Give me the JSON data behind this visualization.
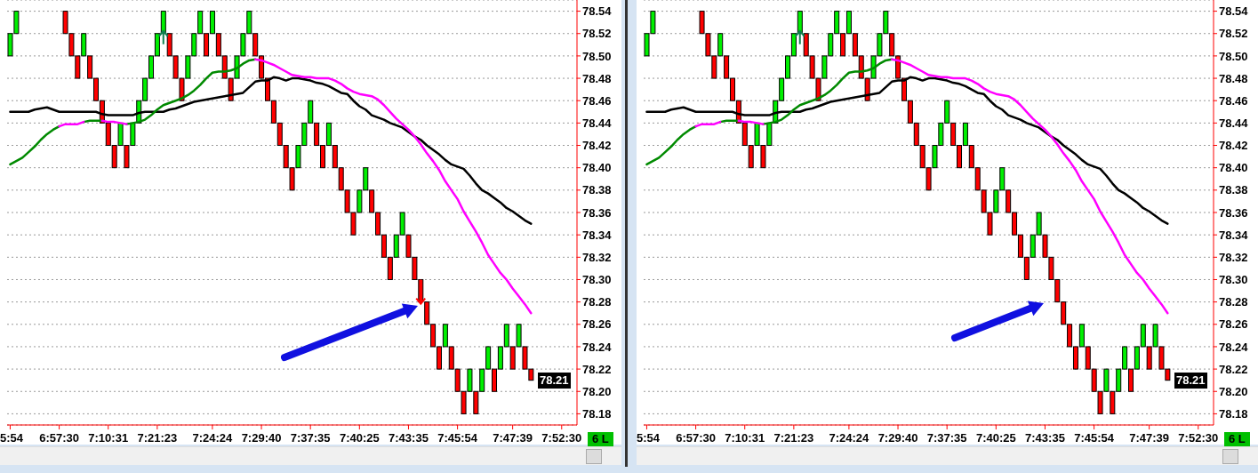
{
  "chart_data": [
    {
      "type": "candlestick",
      "grid": "y",
      "marker": "none",
      "line_style": "solid",
      "categories": [
        "5:54",
        null,
        null,
        null,
        null,
        null,
        null,
        null,
        "6:57:30",
        null,
        null,
        null,
        null,
        null,
        null,
        null,
        "7:10:31",
        null,
        null,
        null,
        null,
        null,
        null,
        null,
        "7:21:23",
        null,
        null,
        null,
        null,
        null,
        null,
        null,
        null,
        "7:24:24",
        null,
        null,
        null,
        null,
        null,
        null,
        null,
        "7:29:40",
        null,
        null,
        null,
        null,
        null,
        null,
        null,
        "7:37:35",
        null,
        null,
        null,
        null,
        null,
        null,
        null,
        "7:40:25",
        null,
        null,
        null,
        null,
        null,
        null,
        null,
        "7:43:35",
        null,
        null,
        null,
        null,
        null,
        null,
        null,
        "7:45:54",
        null,
        null,
        null,
        null,
        null,
        null,
        null,
        null,
        "7:47:39",
        null,
        null,
        null,
        null,
        null,
        null,
        null,
        "7:52:30",
        null,
        null
      ],
      "ohlc": [
        [
          78.5,
          78.52,
          78.5,
          78.52
        ],
        [
          78.52,
          78.54,
          78.52,
          78.54
        ],
        null,
        null,
        null,
        null,
        null,
        null,
        null,
        [
          78.54,
          78.54,
          78.52,
          78.52
        ],
        [
          78.52,
          78.52,
          78.5,
          78.5
        ],
        [
          78.5,
          78.5,
          78.48,
          78.48
        ],
        [
          78.5,
          78.52,
          78.5,
          78.52
        ],
        [
          78.5,
          78.5,
          78.48,
          78.48
        ],
        [
          78.48,
          78.48,
          78.46,
          78.46
        ],
        [
          78.46,
          78.46,
          78.44,
          78.44
        ],
        [
          78.44,
          78.44,
          78.42,
          78.42
        ],
        [
          78.42,
          78.42,
          78.4,
          78.4
        ],
        [
          78.42,
          78.44,
          78.42,
          78.44
        ],
        [
          78.42,
          78.42,
          78.4,
          78.4
        ],
        [
          78.42,
          78.44,
          78.42,
          78.44
        ],
        [
          78.44,
          78.46,
          78.44,
          78.46
        ],
        [
          78.46,
          78.48,
          78.46,
          78.48
        ],
        [
          78.48,
          78.5,
          78.48,
          78.5
        ],
        [
          78.5,
          78.52,
          78.5,
          78.52
        ],
        [
          78.52,
          78.54,
          78.52,
          78.54
        ],
        [
          78.52,
          78.52,
          78.5,
          78.5
        ],
        [
          78.5,
          78.5,
          78.48,
          78.48
        ],
        [
          78.48,
          78.48,
          78.46,
          78.46
        ],
        [
          78.48,
          78.5,
          78.48,
          78.5
        ],
        [
          78.5,
          78.52,
          78.5,
          78.52
        ],
        [
          78.52,
          78.54,
          78.52,
          78.54
        ],
        [
          78.52,
          78.52,
          78.5,
          78.5
        ],
        [
          78.52,
          78.54,
          78.52,
          78.54
        ],
        [
          78.52,
          78.52,
          78.5,
          78.5
        ],
        [
          78.5,
          78.5,
          78.48,
          78.48
        ],
        [
          78.48,
          78.48,
          78.46,
          78.46
        ],
        [
          78.48,
          78.5,
          78.48,
          78.5
        ],
        [
          78.5,
          78.52,
          78.5,
          78.52
        ],
        [
          78.52,
          78.54,
          78.52,
          78.54
        ],
        [
          78.52,
          78.52,
          78.5,
          78.5
        ],
        [
          78.5,
          78.5,
          78.48,
          78.48
        ],
        [
          78.48,
          78.48,
          78.46,
          78.46
        ],
        [
          78.46,
          78.46,
          78.44,
          78.44
        ],
        [
          78.44,
          78.44,
          78.42,
          78.42
        ],
        [
          78.42,
          78.42,
          78.4,
          78.4
        ],
        [
          78.4,
          78.4,
          78.38,
          78.38
        ],
        [
          78.4,
          78.42,
          78.4,
          78.42
        ],
        [
          78.42,
          78.44,
          78.42,
          78.44
        ],
        [
          78.44,
          78.46,
          78.44,
          78.46
        ],
        [
          78.44,
          78.44,
          78.42,
          78.42
        ],
        [
          78.42,
          78.42,
          78.4,
          78.4
        ],
        [
          78.42,
          78.44,
          78.42,
          78.44
        ],
        [
          78.42,
          78.42,
          78.4,
          78.4
        ],
        [
          78.4,
          78.4,
          78.38,
          78.38
        ],
        [
          78.38,
          78.38,
          78.36,
          78.36
        ],
        [
          78.36,
          78.36,
          78.34,
          78.34
        ],
        [
          78.36,
          78.38,
          78.36,
          78.38
        ],
        [
          78.38,
          78.4,
          78.38,
          78.4
        ],
        [
          78.38,
          78.38,
          78.36,
          78.36
        ],
        [
          78.36,
          78.36,
          78.34,
          78.34
        ],
        [
          78.34,
          78.34,
          78.32,
          78.32
        ],
        [
          78.32,
          78.32,
          78.3,
          78.3
        ],
        [
          78.32,
          78.34,
          78.32,
          78.34
        ],
        [
          78.34,
          78.36,
          78.34,
          78.36
        ],
        [
          78.34,
          78.34,
          78.32,
          78.32
        ],
        [
          78.32,
          78.32,
          78.3,
          78.3
        ],
        [
          78.3,
          78.3,
          78.28,
          78.28
        ],
        [
          78.28,
          78.28,
          78.26,
          78.26
        ],
        [
          78.26,
          78.26,
          78.24,
          78.24
        ],
        [
          78.24,
          78.24,
          78.22,
          78.22
        ],
        [
          78.24,
          78.26,
          78.24,
          78.26
        ],
        [
          78.24,
          78.24,
          78.22,
          78.22
        ],
        [
          78.22,
          78.22,
          78.2,
          78.2
        ],
        [
          78.2,
          78.2,
          78.18,
          78.18
        ],
        [
          78.2,
          78.22,
          78.2,
          78.22
        ],
        [
          78.2,
          78.2,
          78.18,
          78.18
        ],
        [
          78.2,
          78.22,
          78.2,
          78.22
        ],
        [
          78.22,
          78.24,
          78.22,
          78.24
        ],
        [
          78.22,
          78.22,
          78.2,
          78.2
        ],
        [
          78.22,
          78.24,
          78.22,
          78.24
        ],
        [
          78.24,
          78.26,
          78.24,
          78.26
        ],
        [
          78.24,
          78.24,
          78.22,
          78.22
        ],
        [
          78.24,
          78.26,
          78.24,
          78.26
        ],
        [
          78.24,
          78.24,
          78.22,
          78.22
        ],
        [
          78.22,
          78.22,
          78.21,
          78.21
        ],
        null,
        null,
        null,
        null,
        null,
        null,
        null
      ],
      "colors": [
        "#00f000",
        "#00f000",
        null,
        null,
        null,
        null,
        null,
        null,
        null,
        "#ff0000",
        "#ff0000",
        "#ff0000",
        "#00f000",
        "#ff0000",
        "#ff0000",
        "#ff0000",
        "#ff0000",
        "#ff0000",
        "#00f000",
        "#ff0000",
        "#00f000",
        "#00f000",
        "#00f000",
        "#00f000",
        "#00f000",
        "#00f000",
        "#ff0000",
        "#ff0000",
        "#ff0000",
        "#00f000",
        "#00f000",
        "#00f000",
        "#ff0000",
        "#00f000",
        "#ff0000",
        "#ff0000",
        "#ff0000",
        "#00f000",
        "#00f000",
        "#00f000",
        "#ff0000",
        "#ff0000",
        "#ff0000",
        "#ff0000",
        "#ff0000",
        "#ff0000",
        "#ff0000",
        "#00f000",
        "#00f000",
        "#00f000",
        "#ff0000",
        "#ff0000",
        "#00f000",
        "#ff0000",
        "#ff0000",
        "#ff0000",
        "#ff0000",
        "#00f000",
        "#00f000",
        "#ff0000",
        "#ff0000",
        "#ff0000",
        "#ff0000",
        "#00f000",
        "#00f000",
        "#ff0000",
        "#ff0000",
        "#ff0000",
        "#ff0000",
        "#ff0000",
        "#ff0000",
        "#00f000",
        "#ff0000",
        "#ff0000",
        "#ff0000",
        "#00f000",
        "#ff0000",
        "#00f000",
        "#00f000",
        "#ff0000",
        "#00f000",
        "#00f000",
        "#ff0000",
        "#00f000",
        "#ff0000",
        "#ff0000",
        null,
        null,
        null,
        null,
        null,
        null,
        null
      ],
      "series": [
        {
          "type": "line",
          "color": "#000000",
          "values": [
            78.45,
            78.45,
            78.45,
            78.45,
            78.452,
            78.453,
            78.454,
            78.452,
            78.45,
            78.45,
            78.45,
            78.45,
            78.45,
            78.45,
            78.45,
            78.448,
            78.447,
            78.447,
            78.447,
            78.447,
            78.447,
            78.449,
            78.45,
            78.45,
            78.45,
            78.45,
            78.452,
            78.453,
            78.455,
            78.457,
            78.459,
            78.46,
            78.461,
            78.462,
            78.463,
            78.464,
            78.465,
            78.466,
            78.467,
            78.472,
            78.477,
            78.478,
            78.478,
            78.481,
            78.48,
            78.478,
            78.48,
            78.48,
            78.479,
            78.478,
            78.476,
            78.475,
            78.473,
            78.47,
            78.467,
            78.466,
            78.46,
            78.455,
            78.452,
            78.447,
            78.445,
            78.443,
            78.44,
            78.438,
            78.436,
            78.432,
            78.428,
            78.425,
            78.42,
            78.416,
            78.412,
            78.407,
            78.403,
            78.401,
            78.399,
            78.393,
            78.386,
            78.38,
            78.377,
            78.373,
            78.369,
            78.364,
            78.361,
            78.357,
            78.353,
            78.35,
            null,
            null,
            null,
            null,
            null,
            null,
            null
          ]
        },
        {
          "type": "line",
          "color": "#008a00",
          "values": [
            78.403,
            78.406,
            78.409,
            78.414,
            78.419,
            78.425,
            78.43,
            78.434,
            78.437,
            null,
            null,
            null,
            78.441,
            78.442,
            78.442,
            78.442,
            null,
            null,
            null,
            78.439,
            78.44,
            78.441,
            78.443,
            78.447,
            78.452,
            78.456,
            78.458,
            78.46,
            78.462,
            78.465,
            78.469,
            78.474,
            78.48,
            78.485,
            78.486,
            78.486,
            78.487,
            78.489,
            78.493,
            78.496,
            78.497,
            null,
            null,
            null,
            null,
            null,
            null,
            null,
            null,
            null,
            null,
            null,
            null,
            null,
            null,
            null,
            null,
            null,
            null,
            null,
            null,
            null,
            null,
            null,
            null,
            null,
            null,
            null,
            null,
            null,
            null,
            null,
            null,
            null,
            null,
            null,
            null,
            null,
            null,
            null,
            null,
            null,
            null,
            null,
            null,
            null,
            null,
            null,
            null,
            null,
            null,
            null,
            null
          ]
        },
        {
          "type": "line",
          "color": "#ff00ff",
          "values": [
            null,
            null,
            null,
            null,
            null,
            null,
            null,
            null,
            78.437,
            78.439,
            78.439,
            78.439,
            78.441,
            null,
            null,
            78.442,
            78.441,
            78.441,
            78.44,
            78.439,
            null,
            null,
            null,
            null,
            null,
            null,
            null,
            null,
            null,
            null,
            null,
            null,
            null,
            null,
            null,
            null,
            null,
            null,
            null,
            null,
            78.497,
            78.496,
            78.494,
            78.492,
            78.489,
            78.486,
            78.483,
            78.482,
            78.481,
            78.481,
            78.48,
            78.48,
            78.48,
            78.478,
            78.475,
            78.471,
            78.468,
            78.466,
            78.465,
            78.464,
            78.461,
            78.456,
            78.45,
            78.444,
            78.439,
            78.434,
            78.428,
            78.421,
            78.413,
            78.406,
            78.398,
            78.388,
            78.38,
            78.372,
            78.361,
            78.352,
            78.343,
            78.333,
            78.322,
            78.314,
            78.306,
            78.3,
            78.292,
            78.285,
            78.278,
            78.27,
            null,
            null,
            null,
            null,
            null,
            null,
            null
          ]
        }
      ],
      "ylim": [
        78.17,
        78.55
      ],
      "yticks": [
        78.18,
        {
          "value": 78.2,
          "label": "78.20"
        },
        78.22,
        78.24,
        78.26,
        78.28,
        {
          "value": 78.3,
          "label": "78.30"
        },
        78.32,
        78.34,
        78.36,
        78.38,
        {
          "value": 78.4,
          "label": "78.40"
        },
        78.42,
        78.44,
        78.46,
        78.48,
        {
          "value": 78.5,
          "label": "78.50"
        },
        78.52,
        78.54
      ],
      "annotations": [
        {
          "text": "78.21",
          "y": 78.21
        },
        "6 L"
      ]
    },
    {
      "type": "candlestick",
      "grid": "y",
      "marker": "none",
      "line_style": "solid",
      "categories": [
        "5:54",
        null,
        null,
        null,
        null,
        null,
        null,
        null,
        "6:57:30",
        null,
        null,
        null,
        null,
        null,
        null,
        null,
        "7:10:31",
        null,
        null,
        null,
        null,
        null,
        null,
        null,
        "7:21:23",
        null,
        null,
        null,
        null,
        null,
        null,
        null,
        null,
        "7:24:24",
        null,
        null,
        null,
        null,
        null,
        null,
        null,
        "7:29:40",
        null,
        null,
        null,
        null,
        null,
        null,
        null,
        "7:37:35",
        null,
        null,
        null,
        null,
        null,
        null,
        null,
        "7:40:25",
        null,
        null,
        null,
        null,
        null,
        null,
        null,
        "7:43:35",
        null,
        null,
        null,
        null,
        null,
        null,
        null,
        "7:45:54",
        null,
        null,
        null,
        null,
        null,
        null,
        null,
        null,
        "7:47:39",
        null,
        null,
        null,
        null,
        null,
        null,
        null,
        "7:52:30",
        null,
        null
      ],
      "ohlc": [
        [
          78.5,
          78.52,
          78.5,
          78.52
        ],
        [
          78.52,
          78.54,
          78.52,
          78.54
        ],
        null,
        null,
        null,
        null,
        null,
        null,
        null,
        [
          78.54,
          78.54,
          78.52,
          78.52
        ],
        [
          78.52,
          78.52,
          78.5,
          78.5
        ],
        [
          78.5,
          78.5,
          78.48,
          78.48
        ],
        [
          78.5,
          78.52,
          78.5,
          78.52
        ],
        [
          78.5,
          78.5,
          78.48,
          78.48
        ],
        [
          78.48,
          78.48,
          78.46,
          78.46
        ],
        [
          78.46,
          78.46,
          78.44,
          78.44
        ],
        [
          78.44,
          78.44,
          78.42,
          78.42
        ],
        [
          78.42,
          78.42,
          78.4,
          78.4
        ],
        [
          78.42,
          78.44,
          78.42,
          78.44
        ],
        [
          78.42,
          78.42,
          78.4,
          78.4
        ],
        [
          78.42,
          78.44,
          78.42,
          78.44
        ],
        [
          78.44,
          78.46,
          78.44,
          78.46
        ],
        [
          78.46,
          78.48,
          78.46,
          78.48
        ],
        [
          78.48,
          78.5,
          78.48,
          78.5
        ],
        [
          78.5,
          78.52,
          78.5,
          78.52
        ],
        [
          78.52,
          78.54,
          78.52,
          78.54
        ],
        [
          78.52,
          78.52,
          78.5,
          78.5
        ],
        [
          78.5,
          78.5,
          78.48,
          78.48
        ],
        [
          78.48,
          78.48,
          78.46,
          78.46
        ],
        [
          78.48,
          78.5,
          78.48,
          78.5
        ],
        [
          78.5,
          78.52,
          78.5,
          78.52
        ],
        [
          78.52,
          78.54,
          78.52,
          78.54
        ],
        [
          78.52,
          78.52,
          78.5,
          78.5
        ],
        [
          78.52,
          78.54,
          78.52,
          78.54
        ],
        [
          78.52,
          78.52,
          78.5,
          78.5
        ],
        [
          78.5,
          78.5,
          78.48,
          78.48
        ],
        [
          78.48,
          78.48,
          78.46,
          78.46
        ],
        [
          78.48,
          78.5,
          78.48,
          78.5
        ],
        [
          78.5,
          78.52,
          78.5,
          78.52
        ],
        [
          78.52,
          78.54,
          78.52,
          78.54
        ],
        [
          78.52,
          78.52,
          78.5,
          78.5
        ],
        [
          78.5,
          78.5,
          78.48,
          78.48
        ],
        [
          78.48,
          78.48,
          78.46,
          78.46
        ],
        [
          78.46,
          78.46,
          78.44,
          78.44
        ],
        [
          78.44,
          78.44,
          78.42,
          78.42
        ],
        [
          78.42,
          78.42,
          78.4,
          78.4
        ],
        [
          78.4,
          78.4,
          78.38,
          78.38
        ],
        [
          78.4,
          78.42,
          78.4,
          78.42
        ],
        [
          78.42,
          78.44,
          78.42,
          78.44
        ],
        [
          78.44,
          78.46,
          78.44,
          78.46
        ],
        [
          78.44,
          78.44,
          78.42,
          78.42
        ],
        [
          78.42,
          78.42,
          78.4,
          78.4
        ],
        [
          78.42,
          78.44,
          78.42,
          78.44
        ],
        [
          78.42,
          78.42,
          78.4,
          78.4
        ],
        [
          78.4,
          78.4,
          78.38,
          78.38
        ],
        [
          78.38,
          78.38,
          78.36,
          78.36
        ],
        [
          78.36,
          78.36,
          78.34,
          78.34
        ],
        [
          78.36,
          78.38,
          78.36,
          78.38
        ],
        [
          78.38,
          78.4,
          78.38,
          78.4
        ],
        [
          78.38,
          78.38,
          78.36,
          78.36
        ],
        [
          78.36,
          78.36,
          78.34,
          78.34
        ],
        [
          78.34,
          78.34,
          78.32,
          78.32
        ],
        [
          78.32,
          78.32,
          78.3,
          78.3
        ],
        [
          78.32,
          78.34,
          78.32,
          78.34
        ],
        [
          78.34,
          78.36,
          78.34,
          78.36
        ],
        [
          78.34,
          78.34,
          78.32,
          78.32
        ],
        [
          78.32,
          78.32,
          78.3,
          78.3
        ],
        [
          78.3,
          78.3,
          78.28,
          78.28
        ],
        [
          78.28,
          78.28,
          78.26,
          78.26
        ],
        [
          78.26,
          78.26,
          78.24,
          78.24
        ],
        [
          78.24,
          78.24,
          78.22,
          78.22
        ],
        [
          78.24,
          78.26,
          78.24,
          78.26
        ],
        [
          78.24,
          78.24,
          78.22,
          78.22
        ],
        [
          78.22,
          78.22,
          78.2,
          78.2
        ],
        [
          78.2,
          78.2,
          78.18,
          78.18
        ],
        [
          78.2,
          78.22,
          78.2,
          78.22
        ],
        [
          78.2,
          78.2,
          78.18,
          78.18
        ],
        [
          78.2,
          78.22,
          78.2,
          78.22
        ],
        [
          78.22,
          78.24,
          78.22,
          78.24
        ],
        [
          78.22,
          78.22,
          78.2,
          78.2
        ],
        [
          78.22,
          78.24,
          78.22,
          78.24
        ],
        [
          78.24,
          78.26,
          78.24,
          78.26
        ],
        [
          78.24,
          78.24,
          78.22,
          78.22
        ],
        [
          78.24,
          78.26,
          78.24,
          78.26
        ],
        [
          78.24,
          78.24,
          78.22,
          78.22
        ],
        [
          78.22,
          78.22,
          78.21,
          78.21
        ],
        null,
        null,
        null,
        null,
        null,
        null,
        null
      ],
      "colors": [
        "#00f000",
        "#00f000",
        null,
        null,
        null,
        null,
        null,
        null,
        null,
        "#ff0000",
        "#ff0000",
        "#ff0000",
        "#00f000",
        "#ff0000",
        "#ff0000",
        "#ff0000",
        "#ff0000",
        "#ff0000",
        "#00f000",
        "#ff0000",
        "#00f000",
        "#00f000",
        "#00f000",
        "#00f000",
        "#00f000",
        "#00f000",
        "#ff0000",
        "#ff0000",
        "#ff0000",
        "#00f000",
        "#00f000",
        "#00f000",
        "#ff0000",
        "#00f000",
        "#ff0000",
        "#ff0000",
        "#ff0000",
        "#00f000",
        "#00f000",
        "#00f000",
        "#ff0000",
        "#ff0000",
        "#ff0000",
        "#ff0000",
        "#ff0000",
        "#ff0000",
        "#ff0000",
        "#00f000",
        "#00f000",
        "#00f000",
        "#ff0000",
        "#ff0000",
        "#00f000",
        "#ff0000",
        "#ff0000",
        "#ff0000",
        "#ff0000",
        "#00f000",
        "#00f000",
        "#ff0000",
        "#ff0000",
        "#ff0000",
        "#ff0000",
        "#00f000",
        "#00f000",
        "#ff0000",
        "#ff0000",
        "#ff0000",
        "#ff0000",
        "#ff0000",
        "#ff0000",
        "#00f000",
        "#ff0000",
        "#ff0000",
        "#ff0000",
        "#00f000",
        "#ff0000",
        "#00f000",
        "#00f000",
        "#ff0000",
        "#00f000",
        "#00f000",
        "#ff0000",
        "#00f000",
        "#ff0000",
        "#ff0000",
        null,
        null,
        null,
        null,
        null,
        null,
        null
      ],
      "series": [
        {
          "type": "line",
          "color": "#000000",
          "values": [
            78.45,
            78.45,
            78.45,
            78.45,
            78.452,
            78.453,
            78.454,
            78.452,
            78.45,
            78.45,
            78.45,
            78.45,
            78.45,
            78.45,
            78.45,
            78.448,
            78.447,
            78.447,
            78.447,
            78.447,
            78.447,
            78.449,
            78.45,
            78.45,
            78.45,
            78.45,
            78.452,
            78.453,
            78.455,
            78.457,
            78.459,
            78.46,
            78.461,
            78.462,
            78.463,
            78.464,
            78.465,
            78.466,
            78.467,
            78.472,
            78.477,
            78.478,
            78.478,
            78.481,
            78.48,
            78.478,
            78.48,
            78.48,
            78.479,
            78.478,
            78.476,
            78.475,
            78.473,
            78.47,
            78.467,
            78.466,
            78.46,
            78.455,
            78.452,
            78.447,
            78.445,
            78.443,
            78.44,
            78.438,
            78.436,
            78.432,
            78.428,
            78.425,
            78.42,
            78.416,
            78.412,
            78.407,
            78.403,
            78.401,
            78.399,
            78.393,
            78.386,
            78.38,
            78.377,
            78.373,
            78.369,
            78.364,
            78.361,
            78.357,
            78.353,
            78.35,
            null,
            null,
            null,
            null,
            null,
            null,
            null
          ]
        },
        {
          "type": "line",
          "color": "#008a00",
          "values": [
            78.403,
            78.406,
            78.409,
            78.414,
            78.419,
            78.425,
            78.43,
            78.434,
            78.437,
            null,
            null,
            null,
            78.441,
            78.442,
            78.442,
            78.442,
            null,
            null,
            null,
            78.439,
            78.44,
            78.441,
            78.443,
            78.447,
            78.452,
            78.456,
            78.458,
            78.46,
            78.462,
            78.465,
            78.469,
            78.474,
            78.48,
            78.485,
            78.486,
            78.486,
            78.487,
            78.489,
            78.493,
            78.496,
            78.497,
            null,
            null,
            null,
            null,
            null,
            null,
            null,
            null,
            null,
            null,
            null,
            null,
            null,
            null,
            null,
            null,
            null,
            null,
            null,
            null,
            null,
            null,
            null,
            null,
            null,
            null,
            null,
            null,
            null,
            null,
            null,
            null,
            null,
            null,
            null,
            null,
            null,
            null,
            null,
            null,
            null,
            null,
            null,
            null,
            null,
            null,
            null,
            null,
            null,
            null,
            null,
            null
          ]
        },
        {
          "type": "line",
          "color": "#ff00ff",
          "values": [
            null,
            null,
            null,
            null,
            null,
            null,
            null,
            null,
            78.437,
            78.439,
            78.439,
            78.439,
            78.441,
            null,
            null,
            78.442,
            78.441,
            78.441,
            78.44,
            78.439,
            null,
            null,
            null,
            null,
            null,
            null,
            null,
            null,
            null,
            null,
            null,
            null,
            null,
            null,
            null,
            null,
            null,
            null,
            null,
            null,
            78.497,
            78.496,
            78.494,
            78.492,
            78.489,
            78.486,
            78.483,
            78.482,
            78.481,
            78.481,
            78.48,
            78.48,
            78.48,
            78.478,
            78.475,
            78.471,
            78.468,
            78.466,
            78.465,
            78.464,
            78.461,
            78.456,
            78.45,
            78.444,
            78.439,
            78.434,
            78.428,
            78.421,
            78.413,
            78.406,
            78.398,
            78.388,
            78.38,
            78.372,
            78.361,
            78.352,
            78.343,
            78.333,
            78.322,
            78.314,
            78.306,
            78.3,
            78.292,
            78.285,
            78.278,
            78.27,
            null,
            null,
            null,
            null,
            null,
            null,
            null
          ]
        }
      ],
      "ylim": [
        78.17,
        78.55
      ],
      "yticks": [
        78.18,
        {
          "value": 78.2,
          "label": "78.20"
        },
        78.22,
        78.24,
        78.26,
        78.28,
        {
          "value": 78.3,
          "label": "78.30"
        },
        78.32,
        78.34,
        78.36,
        78.38,
        {
          "value": 78.4,
          "label": "78.40"
        },
        78.42,
        78.44,
        78.46,
        78.48,
        {
          "value": 78.5,
          "label": "78.50"
        },
        78.52,
        78.54
      ],
      "annotations": [
        {
          "text": "78.21",
          "y": 78.21
        },
        "6 L"
      ]
    }
  ]
}
